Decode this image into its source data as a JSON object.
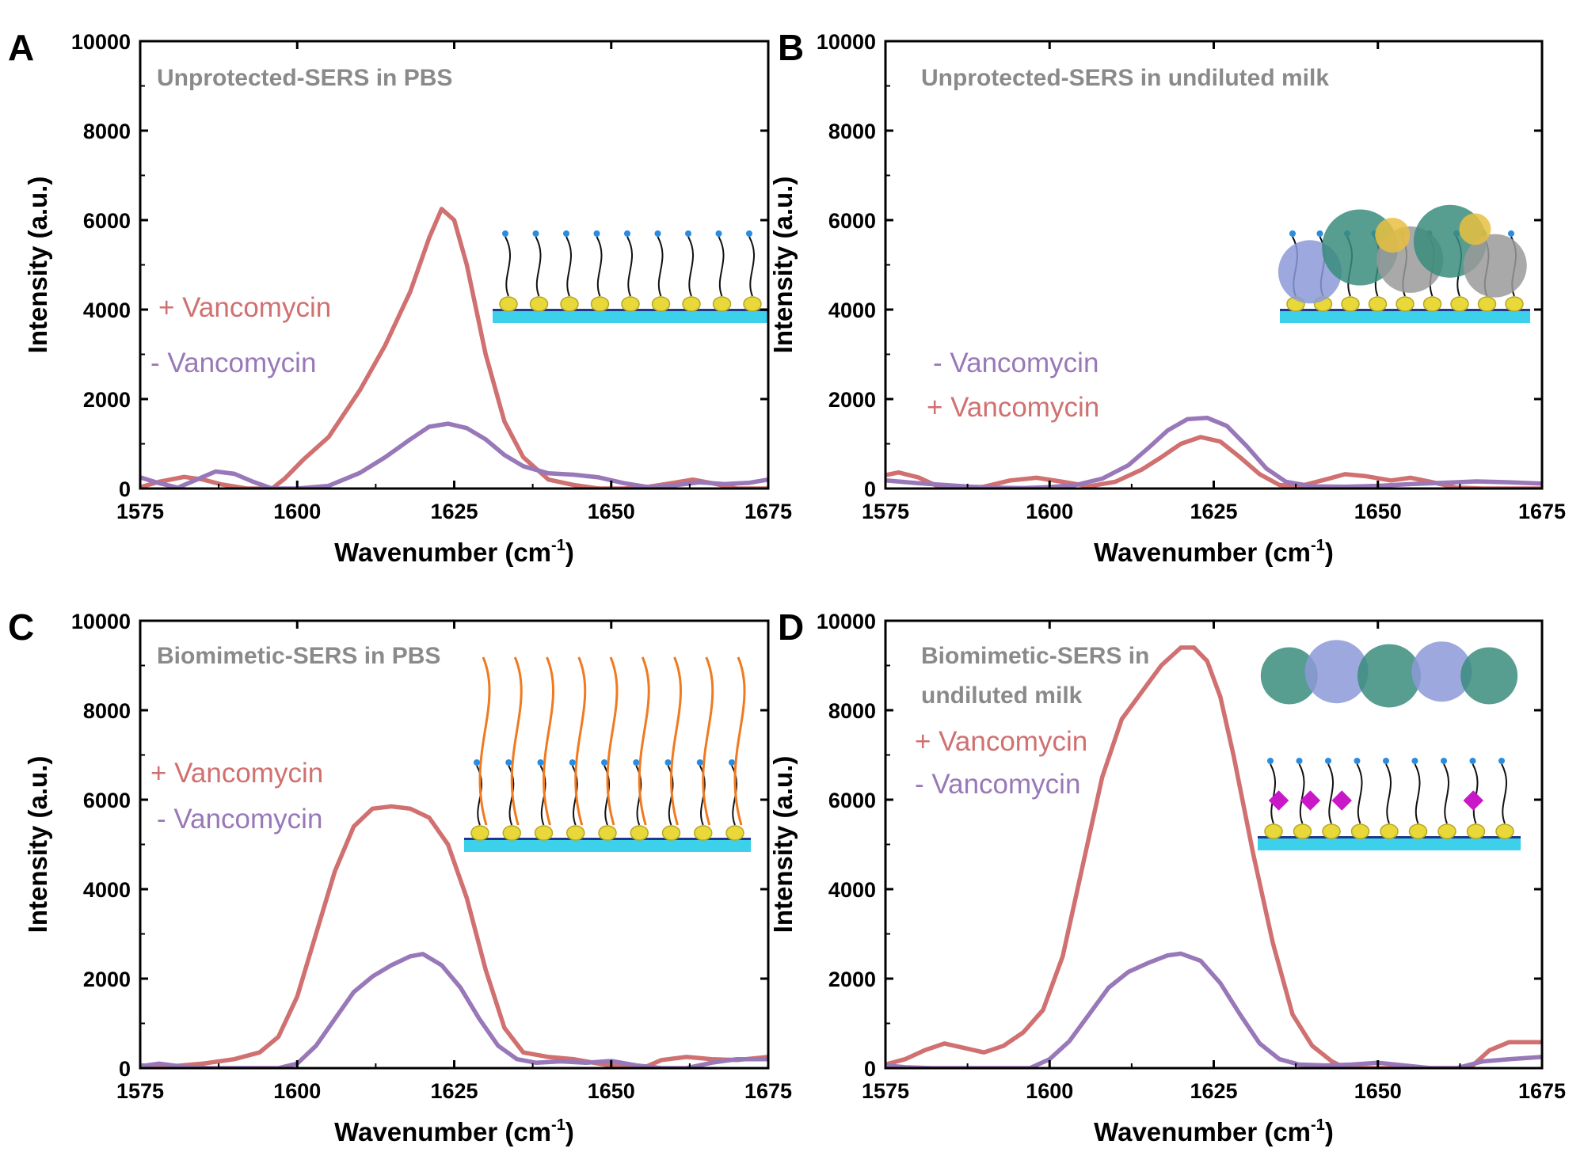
{
  "chart_data": [
    {
      "type": "line",
      "panel_letter": "A",
      "note": [
        "Unprotected-SERS in PBS"
      ],
      "xlabel": "Wavenumber (cm",
      "xlabel_sup": "-1",
      "xlabel_end": ")",
      "ylabel": "Intensity (a.u.)",
      "xlim": [
        1575,
        1675
      ],
      "ylim": [
        0,
        10000
      ],
      "xticks": [
        1575,
        1600,
        1625,
        1650,
        1675
      ],
      "yticks": [
        0,
        2000,
        4000,
        6000,
        8000,
        10000
      ],
      "grid": false,
      "legend_order": [
        "+ Vancomycin",
        "- Vancomycin"
      ],
      "series": [
        {
          "name": "+ Vancomycin",
          "color": "#d07070",
          "x": [
            1575,
            1578,
            1582,
            1585,
            1588,
            1592,
            1596,
            1598,
            1601,
            1605,
            1610,
            1614,
            1618,
            1621,
            1623,
            1625,
            1627,
            1630,
            1633,
            1636,
            1640,
            1644,
            1648,
            1652,
            1656,
            1660,
            1663,
            1666,
            1670,
            1675
          ],
          "y": [
            30,
            150,
            260,
            200,
            90,
            0,
            0,
            220,
            650,
            1150,
            2200,
            3200,
            4400,
            5600,
            6250,
            6000,
            5000,
            3000,
            1500,
            700,
            200,
            80,
            0,
            0,
            40,
            130,
            200,
            120,
            0,
            0
          ]
        },
        {
          "name": "- Vancomycin",
          "color": "#9878b8",
          "x": [
            1575,
            1578,
            1581,
            1584,
            1587,
            1590,
            1593,
            1596,
            1600,
            1605,
            1610,
            1614,
            1618,
            1621,
            1624,
            1627,
            1630,
            1633,
            1636,
            1640,
            1644,
            1648,
            1652,
            1656,
            1660,
            1664,
            1668,
            1672,
            1675
          ],
          "y": [
            250,
            120,
            20,
            200,
            380,
            330,
            150,
            0,
            0,
            60,
            350,
            700,
            1100,
            1380,
            1450,
            1350,
            1100,
            750,
            500,
            340,
            310,
            250,
            120,
            30,
            70,
            140,
            100,
            130,
            200
          ]
        }
      ]
    },
    {
      "type": "line",
      "panel_letter": "B",
      "note": [
        "Unprotected-SERS in undiluted milk"
      ],
      "xlabel": "Wavenumber (cm",
      "xlabel_sup": "-1",
      "xlabel_end": ")",
      "ylabel": "Intensity (a.u.)",
      "xlim": [
        1575,
        1675
      ],
      "ylim": [
        0,
        10000
      ],
      "xticks": [
        1575,
        1600,
        1625,
        1650,
        1675
      ],
      "yticks": [
        0,
        2000,
        4000,
        6000,
        8000,
        10000
      ],
      "grid": false,
      "legend_order": [
        "- Vancomycin",
        "+ Vancomycin"
      ],
      "series": [
        {
          "name": "+ Vancomycin",
          "color": "#d07070",
          "x": [
            1575,
            1577,
            1580,
            1583,
            1587,
            1590,
            1594,
            1598,
            1602,
            1606,
            1610,
            1614,
            1617,
            1620,
            1623,
            1626,
            1629,
            1632,
            1635,
            1638,
            1642,
            1645,
            1648,
            1652,
            1655,
            1658,
            1662,
            1666,
            1670,
            1675
          ],
          "y": [
            300,
            360,
            250,
            50,
            0,
            40,
            180,
            240,
            150,
            50,
            150,
            420,
            700,
            1000,
            1150,
            1050,
            700,
            320,
            80,
            50,
            200,
            320,
            280,
            180,
            240,
            150,
            20,
            0,
            0,
            0
          ]
        },
        {
          "name": "- Vancomycin",
          "color": "#9878b8",
          "x": [
            1575,
            1580,
            1584,
            1588,
            1592,
            1596,
            1600,
            1604,
            1608,
            1612,
            1615,
            1618,
            1621,
            1624,
            1627,
            1630,
            1633,
            1636,
            1640,
            1645,
            1650,
            1655,
            1660,
            1665,
            1670,
            1675
          ],
          "y": [
            180,
            120,
            80,
            40,
            20,
            10,
            30,
            80,
            220,
            520,
            900,
            1300,
            1550,
            1580,
            1400,
            950,
            450,
            150,
            50,
            40,
            60,
            100,
            130,
            160,
            140,
            110
          ]
        }
      ]
    },
    {
      "type": "line",
      "panel_letter": "C",
      "note": [
        "Biomimetic-SERS in PBS"
      ],
      "xlabel": "Wavenumber (cm",
      "xlabel_sup": "-1",
      "xlabel_end": ")",
      "ylabel": "Intensity (a.u.)",
      "xlim": [
        1575,
        1675
      ],
      "ylim": [
        0,
        10000
      ],
      "xticks": [
        1575,
        1600,
        1625,
        1650,
        1675
      ],
      "yticks": [
        0,
        2000,
        4000,
        6000,
        8000,
        10000
      ],
      "grid": false,
      "legend_order": [
        "+ Vancomycin",
        "- Vancomycin"
      ],
      "series": [
        {
          "name": "+ Vancomycin",
          "color": "#d07070",
          "x": [
            1575,
            1580,
            1585,
            1590,
            1594,
            1597,
            1600,
            1603,
            1606,
            1609,
            1612,
            1615,
            1618,
            1621,
            1624,
            1627,
            1630,
            1633,
            1636,
            1640,
            1644,
            1648,
            1652,
            1655,
            1658,
            1662,
            1666,
            1670,
            1675
          ],
          "y": [
            60,
            40,
            100,
            200,
            350,
            700,
            1600,
            3000,
            4400,
            5400,
            5800,
            5850,
            5800,
            5600,
            5000,
            3800,
            2200,
            900,
            350,
            250,
            200,
            100,
            20,
            0,
            180,
            250,
            200,
            180,
            250
          ]
        },
        {
          "name": "- Vancomycin",
          "color": "#9878b8",
          "x": [
            1575,
            1578,
            1582,
            1586,
            1590,
            1594,
            1597,
            1600,
            1603,
            1606,
            1609,
            1612,
            1615,
            1618,
            1620,
            1623,
            1626,
            1629,
            1632,
            1635,
            1638,
            1642,
            1646,
            1650,
            1654,
            1658,
            1662,
            1666,
            1670,
            1675
          ],
          "y": [
            40,
            100,
            30,
            0,
            0,
            0,
            0,
            100,
            500,
            1100,
            1700,
            2050,
            2300,
            2500,
            2550,
            2300,
            1800,
            1100,
            500,
            200,
            120,
            150,
            120,
            160,
            60,
            0,
            0,
            120,
            200,
            200
          ]
        }
      ]
    },
    {
      "type": "line",
      "panel_letter": "D",
      "note": [
        "Biomimetic-SERS in",
        "undiluted milk"
      ],
      "xlabel": "Wavenumber (cm",
      "xlabel_sup": "-1",
      "xlabel_end": ")",
      "ylabel": "Intensity (a.u.)",
      "xlim": [
        1575,
        1675
      ],
      "ylim": [
        0,
        10000
      ],
      "xticks": [
        1575,
        1600,
        1625,
        1650,
        1675
      ],
      "yticks": [
        0,
        2000,
        4000,
        6000,
        8000,
        10000
      ],
      "grid": false,
      "legend_order": [
        "+ Vancomycin",
        "- Vancomycin"
      ],
      "series": [
        {
          "name": "+ Vancomycin",
          "color": "#d07070",
          "x": [
            1575,
            1578,
            1581,
            1584,
            1587,
            1590,
            1593,
            1596,
            1599,
            1602,
            1605,
            1608,
            1611,
            1614,
            1617,
            1620,
            1622,
            1624,
            1626,
            1628,
            1631,
            1634,
            1637,
            1640,
            1643,
            1645,
            1650,
            1655,
            1660,
            1664,
            1667,
            1670,
            1675
          ],
          "y": [
            80,
            200,
            400,
            550,
            450,
            350,
            500,
            800,
            1300,
            2500,
            4500,
            6500,
            7800,
            8400,
            9000,
            9400,
            9400,
            9100,
            8300,
            7000,
            4800,
            2800,
            1200,
            500,
            150,
            0,
            0,
            0,
            0,
            0,
            400,
            580,
            580
          ]
        },
        {
          "name": "- Vancomycin",
          "color": "#9878b8",
          "x": [
            1575,
            1578,
            1582,
            1586,
            1590,
            1594,
            1597,
            1600,
            1603,
            1606,
            1609,
            1612,
            1615,
            1618,
            1620,
            1623,
            1626,
            1629,
            1632,
            1635,
            1638,
            1642,
            1646,
            1650,
            1654,
            1658,
            1662,
            1666,
            1670,
            1675
          ],
          "y": [
            60,
            20,
            0,
            0,
            0,
            0,
            0,
            200,
            600,
            1200,
            1800,
            2150,
            2350,
            2520,
            2560,
            2400,
            1900,
            1200,
            550,
            200,
            80,
            60,
            80,
            120,
            60,
            0,
            0,
            150,
            200,
            250
          ]
        }
      ]
    }
  ]
}
